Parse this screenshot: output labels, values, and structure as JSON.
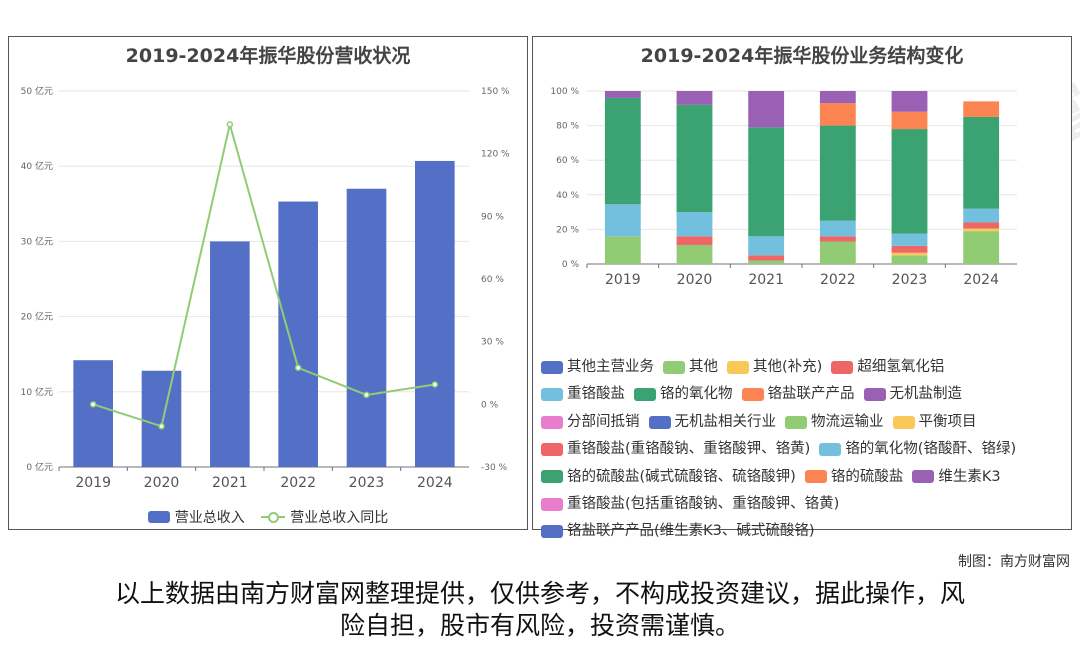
{
  "left_chart": {
    "title": "2019-2024年振华股份营收状况",
    "legend_bar": "营业总收入",
    "legend_line": "营业总收入同比"
  },
  "right_chart": {
    "title": "2019-2024年振华股份业务结构变化"
  },
  "watermark": "南方财富网",
  "credit": "制图：南方财富网",
  "disclaimer_line1": "以上数据由南方财富网整理提供，仅供参考，不构成投资建议，据此操作，风",
  "disclaimer_line2": "险自担，股市有风险，投资需谨慎。",
  "colors": {
    "bar": "#5470c6",
    "line": "#91cc75"
  },
  "chart_data": [
    {
      "type": "bar",
      "title": "2019-2024年振华股份营收状况",
      "categories": [
        "2019",
        "2020",
        "2021",
        "2022",
        "2023",
        "2024"
      ],
      "y_ticks": [
        "0 亿元",
        "10 亿元",
        "20 亿元",
        "30 亿元",
        "40 亿元",
        "50 亿元"
      ],
      "y2_ticks": [
        "-30 %",
        "0 %",
        "30 %",
        "60 %",
        "90 %",
        "120 %",
        "150 %"
      ],
      "ylim": [
        0,
        50
      ],
      "y2lim": [
        -30,
        150
      ],
      "series": [
        {
          "name": "营业总收入",
          "type": "bar",
          "axis": "left",
          "values": [
            14.2,
            12.8,
            30.0,
            35.3,
            37.0,
            40.7
          ]
        },
        {
          "name": "营业总收入同比",
          "type": "line",
          "axis": "right",
          "values": [
            0.0,
            -10.5,
            134.0,
            17.5,
            4.5,
            9.5
          ]
        }
      ],
      "grid": true,
      "legend_position": "bottom"
    },
    {
      "type": "bar",
      "stacked": true,
      "title": "2019-2024年振华股份业务结构变化",
      "categories": [
        "2019",
        "2020",
        "2021",
        "2022",
        "2023",
        "2024"
      ],
      "y_ticks": [
        "0 %",
        "20 %",
        "40 %",
        "60 %",
        "80 %",
        "100 %"
      ],
      "ylim": [
        0,
        100
      ],
      "series": [
        {
          "name": "其他主营业务",
          "color": "#5470c6",
          "values": [
            0,
            0,
            0,
            0,
            0,
            0
          ]
        },
        {
          "name": "其他",
          "color": "#91cc75",
          "values": [
            16,
            11,
            2,
            13,
            5,
            19
          ]
        },
        {
          "name": "其他(补充)",
          "color": "#fac858",
          "values": [
            0,
            0,
            0,
            0,
            1.5,
            1.5
          ]
        },
        {
          "name": "超细氢氧化铝",
          "color": "#ee6666",
          "values": [
            0,
            5,
            3,
            3,
            4,
            3.5
          ]
        },
        {
          "name": "重铬酸盐",
          "color": "#73c0de",
          "values": [
            18.5,
            14,
            11,
            9,
            7,
            8
          ]
        },
        {
          "name": "铬的氧化物",
          "color": "#3ba272",
          "values": [
            61.5,
            62,
            63,
            55,
            60.5,
            53
          ]
        },
        {
          "name": "铬盐联产产品",
          "color": "#fc8452",
          "values": [
            0,
            0,
            0,
            13,
            10,
            9
          ]
        },
        {
          "name": "无机盐制造",
          "color": "#9a60b4",
          "values": [
            4,
            8,
            21,
            7,
            12,
            0
          ]
        },
        {
          "name": "分部间抵销",
          "color": "#ea7ccc",
          "values": [
            0,
            0,
            0,
            0,
            0,
            0
          ]
        },
        {
          "name": "无机盐相关行业",
          "color": "#5470c6",
          "values": [
            0,
            0,
            0,
            0,
            0,
            0
          ]
        },
        {
          "name": "物流运输业",
          "color": "#91cc75",
          "values": [
            0,
            0,
            0,
            0,
            0,
            0
          ]
        },
        {
          "name": "平衡项目",
          "color": "#fac858",
          "values": [
            0,
            0,
            0,
            0,
            0,
            0
          ]
        },
        {
          "name": "重铬酸盐(重铬酸钠、重铬酸钾、铬黄)",
          "color": "#ee6666",
          "values": [
            0,
            0,
            0,
            0,
            0,
            0
          ]
        },
        {
          "name": "铬的氧化物(铬酸酐、铬绿)",
          "color": "#73c0de",
          "values": [
            0,
            0,
            0,
            0,
            0,
            0
          ]
        },
        {
          "name": "铬的硫酸盐(碱式硫酸铬、硫铬酸钾)",
          "color": "#3ba272",
          "values": [
            0,
            0,
            0,
            0,
            0,
            0
          ]
        },
        {
          "name": "铬的硫酸盐",
          "color": "#fc8452",
          "values": [
            0,
            0,
            0,
            0,
            0,
            0
          ]
        },
        {
          "name": "维生素K3",
          "color": "#9a60b4",
          "values": [
            0,
            0,
            0,
            0,
            0,
            0
          ]
        },
        {
          "name": "重铬酸盐(包括重铬酸钠、重铬酸钾、铬黄)",
          "color": "#ea7ccc",
          "values": [
            0,
            0,
            0,
            0,
            0,
            0
          ]
        },
        {
          "name": "铬盐联产产品(维生素K3、碱式硫酸铬)",
          "color": "#5470c6",
          "values": [
            0,
            0,
            0,
            0,
            0,
            0
          ]
        }
      ],
      "legend_position": "bottom",
      "legend_rows": [
        [
          0,
          1,
          2,
          3
        ],
        [
          4,
          5,
          6,
          7
        ],
        [
          8,
          9,
          10,
          11
        ],
        [
          12,
          13
        ],
        [
          14,
          15,
          16
        ],
        [
          17
        ],
        [
          18
        ]
      ]
    }
  ]
}
